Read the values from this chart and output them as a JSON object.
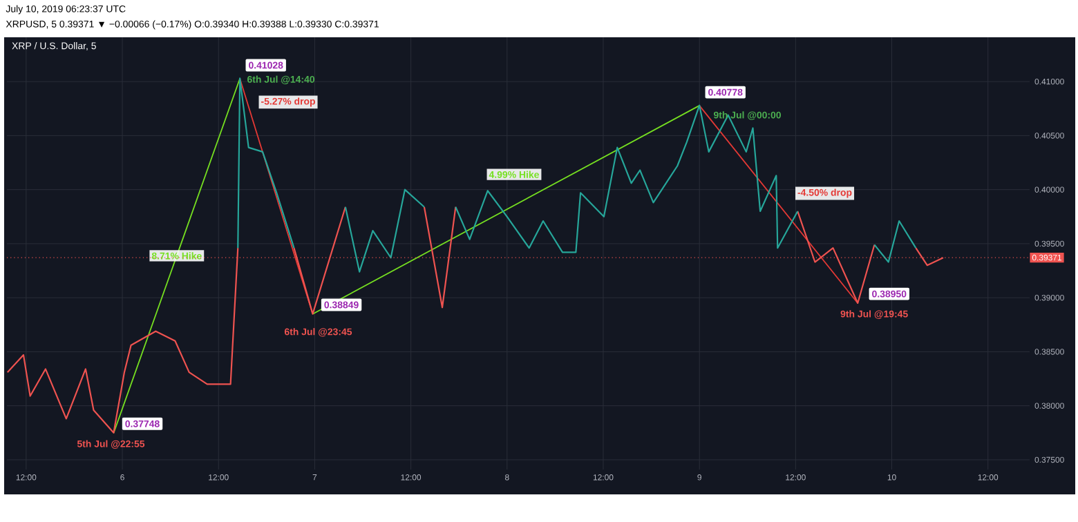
{
  "chart_data": {
    "type": "line",
    "title": "XRP / U.S. Dollar, 5",
    "x": [
      "2019-07-05T09:40",
      "2019-07-05T11:40",
      "2019-07-05T12:30",
      "2019-07-05T14:25",
      "2019-07-05T17:00",
      "2019-07-05T19:25",
      "2019-07-05T20:25",
      "2019-07-05T22:55",
      "2019-07-06T00:15",
      "2019-07-06T01:05",
      "2019-07-06T04:10",
      "2019-07-06T06:35",
      "2019-07-06T08:20",
      "2019-07-06T10:35",
      "2019-07-06T13:30",
      "2019-07-06T14:25",
      "2019-07-06T14:40",
      "2019-07-06T15:45",
      "2019-07-06T17:30",
      "2019-07-06T19:15",
      "2019-07-06T21:25",
      "2019-07-06T23:45",
      "2019-07-07T03:50",
      "2019-07-07T05:35",
      "2019-07-07T07:15",
      "2019-07-07T09:30",
      "2019-07-07T11:15",
      "2019-07-07T13:40",
      "2019-07-07T15:55",
      "2019-07-07T17:35",
      "2019-07-07T19:20",
      "2019-07-07T21:35",
      "2019-07-08T00:00",
      "2019-07-08T02:45",
      "2019-07-08T04:30",
      "2019-07-08T06:55",
      "2019-07-08T08:35",
      "2019-07-08T09:10",
      "2019-07-08T12:05",
      "2019-07-08T13:45",
      "2019-07-08T15:30",
      "2019-07-08T16:35",
      "2019-07-08T18:15",
      "2019-07-08T21:15",
      "2019-07-08T22:25",
      "2019-07-09T00:00",
      "2019-07-09T01:10",
      "2019-07-09T03:35",
      "2019-07-09T05:50",
      "2019-07-09T06:40",
      "2019-07-09T07:35",
      "2019-07-09T09:35",
      "2019-07-09T09:45",
      "2019-07-09T12:15",
      "2019-07-09T14:25",
      "2019-07-09T16:40",
      "2019-07-09T19:45",
      "2019-07-09T21:50",
      "2019-07-09T23:35",
      "2019-07-10T00:55",
      "2019-07-10T03:00",
      "2019-07-10T04:25",
      "2019-07-10T06:25"
    ],
    "series": [
      {
        "color": "#ef5350",
        "values": [
          0.3831,
          0.3847,
          0.3809,
          0.3834,
          0.3788,
          0.3834,
          0.3796,
          0.3775,
          0.3831,
          0.3856,
          0.3869,
          0.386,
          0.3831,
          0.382,
          0.382,
          0.3946,
          null,
          null,
          null,
          null,
          0.3946,
          0.3885,
          0.3984,
          null,
          null,
          null,
          null,
          0.3984,
          0.3891,
          0.3984,
          null,
          null,
          null,
          null,
          null,
          null,
          null,
          null,
          null,
          null,
          null,
          null,
          null,
          null,
          null,
          null,
          null,
          null,
          null,
          null,
          null,
          null,
          null,
          0.398,
          0.3933,
          0.3946,
          0.3895,
          0.3949,
          null,
          null,
          0.3946,
          0.393,
          0.3937
        ]
      },
      {
        "color": "#26a69a",
        "values": [
          null,
          null,
          null,
          null,
          null,
          null,
          null,
          null,
          null,
          null,
          null,
          null,
          null,
          null,
          null,
          0.3946,
          0.4103,
          0.4039,
          0.4035,
          0.3997,
          0.3946,
          null,
          0.3984,
          0.3924,
          0.3962,
          0.3937,
          0.4,
          0.3984,
          null,
          0.3984,
          0.3954,
          0.3999,
          0.3975,
          0.3946,
          0.3971,
          0.3942,
          0.3942,
          0.3997,
          0.3975,
          0.4039,
          0.4006,
          0.4018,
          0.3988,
          0.4022,
          0.4044,
          0.4078,
          0.4035,
          0.4069,
          0.4035,
          0.4057,
          0.398,
          0.4013,
          0.3946,
          0.398,
          null,
          null,
          null,
          0.3949,
          0.3933,
          0.3971,
          0.3946,
          null,
          null
        ]
      },
      {
        "name": "8.71% Hike",
        "color": "#76e021",
        "x": [
          "2019-07-05T22:55",
          "2019-07-06T14:40"
        ],
        "values": [
          0.37748,
          0.41028
        ]
      },
      {
        "name": "-5.27% drop",
        "color": "#e53935",
        "x": [
          "2019-07-06T14:40",
          "2019-07-06T23:45"
        ],
        "values": [
          0.41028,
          0.38849
        ]
      },
      {
        "name": "4.99% Hike",
        "color": "#76e021",
        "x": [
          "2019-07-06T23:45",
          "2019-07-09T00:00"
        ],
        "values": [
          0.38849,
          0.40778
        ]
      },
      {
        "name": "-4.50% drop",
        "color": "#e53935",
        "x": [
          "2019-07-09T00:00",
          "2019-07-09T19:45"
        ],
        "values": [
          0.40778,
          0.3895
        ]
      }
    ],
    "xlim": [
      "2019-07-05T09:36",
      "2019-07-10T17:12"
    ],
    "xticks": [
      {
        "value": "2019-07-05T12:00",
        "label": "12:00"
      },
      {
        "value": "2019-07-06",
        "label": "6"
      },
      {
        "value": "2019-07-06T12:00",
        "label": "12:00"
      },
      {
        "value": "2019-07-07",
        "label": "7"
      },
      {
        "value": "2019-07-07T12:00",
        "label": "12:00"
      },
      {
        "value": "2019-07-08",
        "label": "8"
      },
      {
        "value": "2019-07-08T12:00",
        "label": "12:00"
      },
      {
        "value": "2019-07-09",
        "label": "9"
      },
      {
        "value": "2019-07-09T12:00",
        "label": "12:00"
      },
      {
        "value": "2019-07-10",
        "label": "10"
      },
      {
        "value": "2019-07-10T12:00",
        "label": "12:00"
      }
    ],
    "ylim": [
      0.3741,
      0.4141
    ],
    "yticks": [
      {
        "value": 0.375,
        "label": "0.37500"
      },
      {
        "value": 0.38,
        "label": "0.38000"
      },
      {
        "value": 0.385,
        "label": "0.38500"
      },
      {
        "value": 0.39,
        "label": "0.39000"
      },
      {
        "value": 0.395,
        "label": "0.39500"
      },
      {
        "value": 0.4,
        "label": "0.40000"
      },
      {
        "value": 0.405,
        "label": "0.40500"
      },
      {
        "value": 0.41,
        "label": "0.41000"
      }
    ],
    "grid": true,
    "ref_lines": [
      {
        "axis": "y",
        "value": 0.39371,
        "label": "0.39371",
        "color": "#ef5350",
        "line_style": "dotted"
      }
    ],
    "annotations": [
      "July 10, 2019 06:23:37 UTC",
      "XRPUSD, 5  0.39371 ▼ −0.00066 (−0.17%) O:0.39340 H:0.39388 L:0.39330 C:0.39371",
      {
        "text": "0.41028",
        "x": "2019-07-06T14:40",
        "y": 0.41028
      },
      {
        "text": "6th Jul @14:40",
        "x": "2019-07-06T14:40",
        "y": 0.41028
      },
      {
        "text": "0.37748",
        "x": "2019-07-05T22:55",
        "y": 0.37748
      },
      {
        "text": "5th Jul @22:55",
        "x": "2019-07-05T22:55",
        "y": 0.37748
      },
      {
        "text": "0.38849",
        "x": "2019-07-06T23:45",
        "y": 0.38849
      },
      {
        "text": "6th Jul @23:45",
        "x": "2019-07-06T23:45",
        "y": 0.38849
      },
      {
        "text": "0.40778",
        "x": "2019-07-09T00:00",
        "y": 0.40778
      },
      {
        "text": "9th Jul @00:00",
        "x": "2019-07-09T00:00",
        "y": 0.40778
      },
      {
        "text": "0.38950",
        "x": "2019-07-09T19:45",
        "y": 0.3895
      },
      {
        "text": "9th Jul @19:45",
        "x": "2019-07-09T19:45",
        "y": 0.3895
      }
    ]
  }
}
